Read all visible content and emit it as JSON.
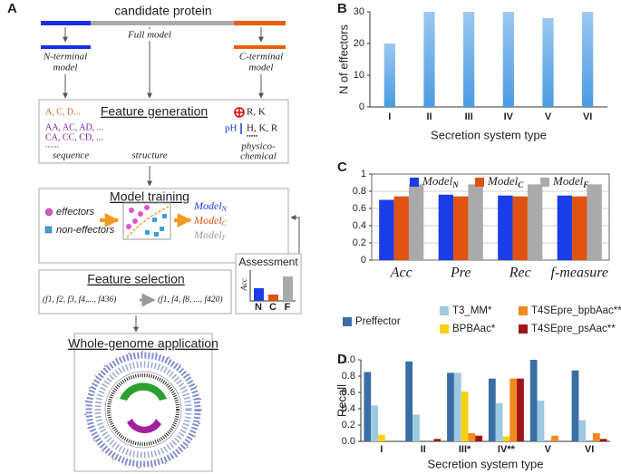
{
  "diagram": {
    "panel": "A",
    "protein": "candidate protein",
    "full_model": "Full model",
    "n_model": [
      "N-terminal",
      "model"
    ],
    "c_model": [
      "C-terminal",
      "model"
    ],
    "feature_generation": {
      "title": "Feature generation",
      "sequence_lines": [
        "A, C, D...",
        "AA, AC, AD, ...",
        "CA, CC, CD, ...",
        "......"
      ],
      "sequence": "sequence",
      "structure": "structure",
      "charge": "R, K",
      "ph": "pH",
      "ph_residues": "H, K, R",
      "dots": "•••••",
      "physicochemical": [
        "physico-",
        "chemical"
      ]
    },
    "model_training": {
      "title": "Model training",
      "effectors": "effectors",
      "non_effectors": "non-effectors",
      "models": [
        {
          "name": "Model",
          "subscript": "N"
        },
        {
          "name": "Model",
          "subscript": "C"
        },
        {
          "name": "Model",
          "subscript": "F"
        }
      ]
    },
    "assessment": {
      "title": "Assessment",
      "axis": "Acc",
      "labels": [
        "N",
        "C",
        "F"
      ]
    },
    "feature_selection": {
      "title": "Feature selection",
      "before": "(f1, f2, f3, f4,..., f436)",
      "after": "(f1, f4, f8, ..., f420)"
    },
    "application": {
      "title": "Whole-genome application"
    }
  },
  "chart_data": [
    {
      "panel": "B",
      "type": "bar",
      "categories": [
        "I",
        "II",
        "III",
        "IV",
        "V",
        "VI"
      ],
      "values": [
        20,
        30,
        30,
        30,
        28,
        30
      ],
      "color": "#4a9be3",
      "ylabel": "N of effectors",
      "xlabel": "Secretion system type",
      "ylim": [
        0,
        30
      ],
      "yticks": [
        0,
        10,
        20,
        30
      ],
      "grid": false,
      "frame": false
    },
    {
      "panel": "C",
      "type": "bar",
      "categories": [
        "Acc",
        "Pre",
        "Rec",
        "f-measure"
      ],
      "series": [
        {
          "name": "Model",
          "subscript": "N",
          "color": "#1a3de8",
          "values": [
            0.7,
            0.76,
            0.75,
            0.75
          ]
        },
        {
          "name": "Model",
          "subscript": "C",
          "color": "#e0520f",
          "values": [
            0.74,
            0.74,
            0.74,
            0.74
          ]
        },
        {
          "name": "Model",
          "subscript": "F",
          "color": "#aaaaaa",
          "values": [
            0.88,
            0.88,
            0.88,
            0.88
          ]
        }
      ],
      "ylim": [
        0,
        1
      ],
      "yticks": [
        0,
        0.2,
        0.4,
        0.6,
        0.8,
        1
      ],
      "grid": true,
      "frame": true
    },
    {
      "panel": "D",
      "type": "bar",
      "categories": [
        "I",
        "II",
        "III*",
        "IV**",
        "V",
        "VI"
      ],
      "series": [
        {
          "name": "Preffector",
          "color": "#3a6ea5",
          "values": [
            0.85,
            0.98,
            0.84,
            0.77,
            1.0,
            0.87
          ]
        },
        {
          "name": "T3_MM*",
          "color": "#9ecae1",
          "values": [
            0.44,
            0.33,
            0.84,
            0.47,
            0.5,
            0.26
          ]
        },
        {
          "name": "BPBAac*",
          "color": "#f5d10f",
          "values": [
            0.08,
            0,
            0.61,
            0.06,
            0,
            0
          ]
        },
        {
          "name": "T4SEpre_bpbAac**",
          "color": "#f08a24",
          "values": [
            0,
            0,
            0.1,
            0.77,
            0.07,
            0.1
          ]
        },
        {
          "name": "T4SEpre_psAac**",
          "color": "#a01515",
          "values": [
            0,
            0.03,
            0.07,
            0.77,
            0,
            0.03
          ]
        }
      ],
      "ylabel": "Recall",
      "xlabel": "Secretion system type",
      "ylim": [
        0,
        1
      ],
      "yticks": [
        {
          "value": 0,
          "label": "0.0"
        },
        0.2,
        0.4,
        0.6,
        0.8,
        {
          "value": 1,
          "label": "1.0"
        }
      ],
      "grid": false,
      "frame": false
    }
  ]
}
